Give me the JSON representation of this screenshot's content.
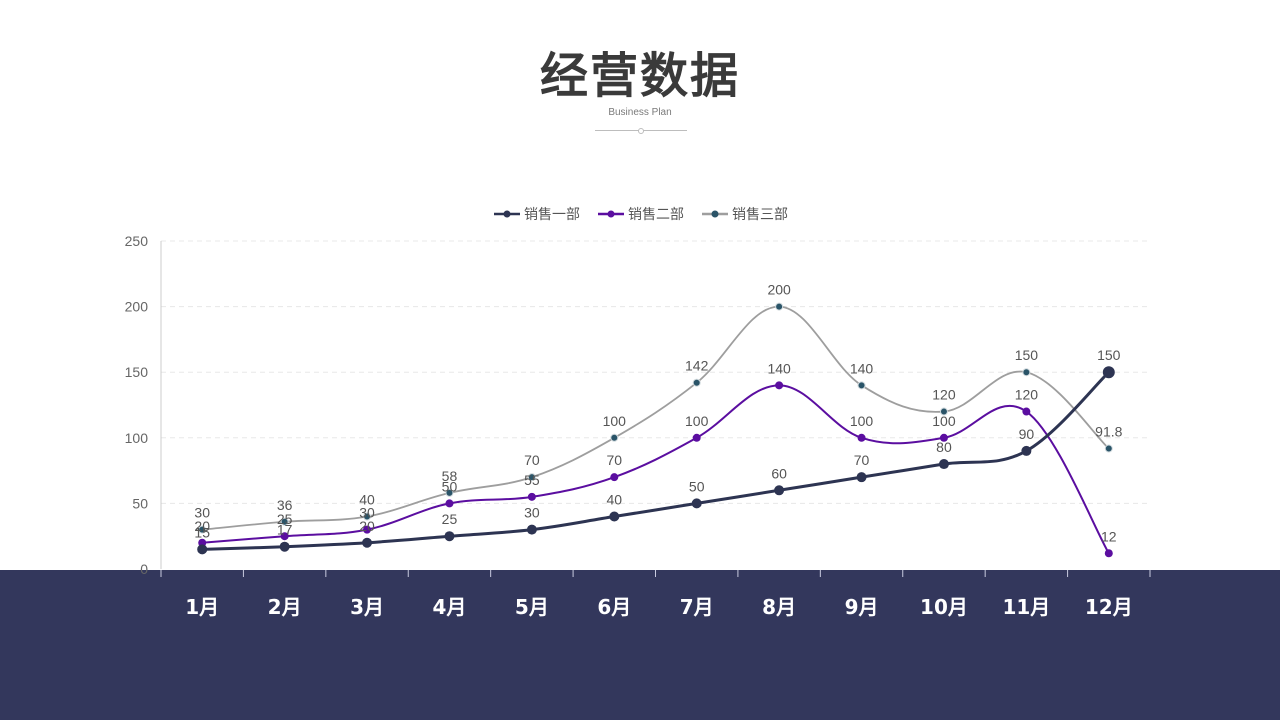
{
  "header": {
    "title": "经营数据",
    "subtitle": "Business Plan"
  },
  "colors": {
    "band": "#33375c",
    "series": [
      "#2d3452",
      "#5b0ea0",
      "#9e9e9e"
    ],
    "markers": [
      "#2d3452",
      "#5b0ea0",
      "#2a5468"
    ]
  },
  "chart_data": {
    "type": "line",
    "title": "经营数据",
    "subtitle": "Business Plan",
    "xlabel": "",
    "ylabel": "",
    "categories": [
      "1月",
      "2月",
      "3月",
      "4月",
      "5月",
      "6月",
      "7月",
      "8月",
      "9月",
      "10月",
      "11月",
      "12月"
    ],
    "ylim": [
      0,
      250
    ],
    "yticks": [
      0,
      50,
      100,
      150,
      200,
      250
    ],
    "grid": true,
    "legend": "top-center",
    "series": [
      {
        "name": "销售一部",
        "values": [
          15,
          17,
          20,
          25,
          30,
          40,
          50,
          60,
          70,
          80,
          90,
          150
        ],
        "labels": [
          "15",
          "17",
          "20",
          "25",
          "30",
          "40",
          "50",
          "60",
          "70",
          "80",
          "90",
          "150"
        ]
      },
      {
        "name": "销售二部",
        "values": [
          20,
          25,
          30,
          50,
          55,
          70,
          100,
          140,
          100,
          100,
          120,
          12
        ],
        "labels": [
          "20",
          "25",
          "30",
          "50",
          "55",
          "70",
          "100",
          "140",
          "100",
          "100",
          "120",
          "12"
        ]
      },
      {
        "name": "销售三部",
        "values": [
          30,
          36,
          40,
          58,
          70,
          100,
          142,
          200,
          140,
          120,
          150,
          91.8
        ],
        "labels": [
          "30",
          "36",
          "40",
          "58",
          "70",
          "100",
          "142",
          "200",
          "140",
          "120",
          "150",
          "91.8"
        ]
      }
    ]
  }
}
